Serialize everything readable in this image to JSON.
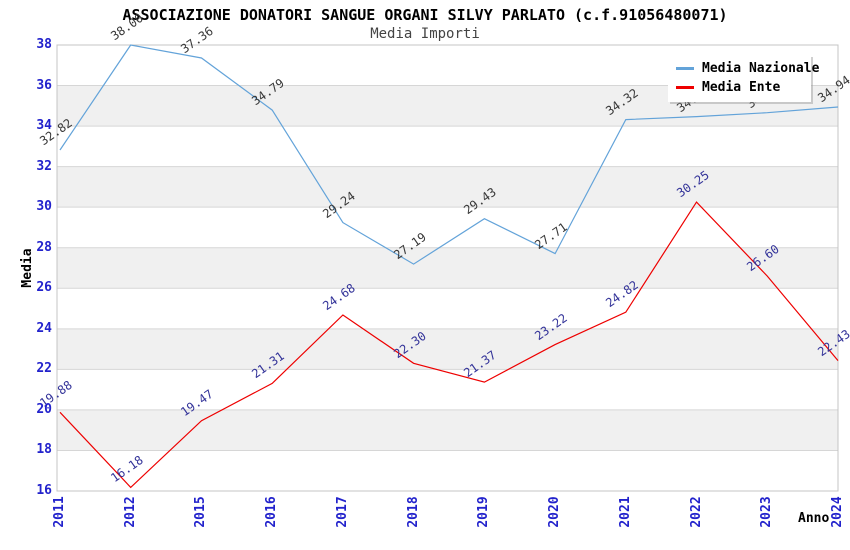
{
  "chart_data": {
    "type": "line",
    "title": "ASSOCIAZIONE DONATORI SANGUE ORGANI SILVY PARLATO (c.f.91056480071)",
    "subtitle": "Media Importi",
    "xlabel": "Anno",
    "ylabel": "Media",
    "categories": [
      "2011",
      "2012",
      "2015",
      "2016",
      "2017",
      "2018",
      "2019",
      "2020",
      "2021",
      "2022",
      "2023",
      "2024"
    ],
    "series": [
      {
        "name": "Media Nazionale",
        "color": "#63A3D9",
        "label_color": "#383838",
        "values": [
          32.82,
          38.0,
          37.36,
          34.79,
          29.24,
          27.19,
          29.43,
          27.71,
          34.32,
          34.47,
          34.66,
          34.94
        ]
      },
      {
        "name": "Media Ente",
        "color": "#EE0000",
        "label_color": "#333399",
        "values": [
          19.88,
          16.18,
          19.47,
          21.31,
          24.68,
          22.3,
          21.37,
          23.22,
          24.82,
          30.25,
          26.6,
          22.43
        ]
      }
    ],
    "ylim": [
      16,
      38
    ],
    "ytick_step": 2,
    "yticks": [
      16,
      18,
      20,
      22,
      24,
      26,
      28,
      30,
      32,
      34,
      36,
      38
    ],
    "grid": true,
    "legend_position": "top-right",
    "label_format": "0.00",
    "colors": {
      "axis_tick_labels": "#2222CC",
      "band": "#F0F0F0",
      "gridline": "#D6D6D6",
      "plot_border": "#C4C4C4",
      "title": "#000000",
      "subtitle": "#444444"
    }
  }
}
